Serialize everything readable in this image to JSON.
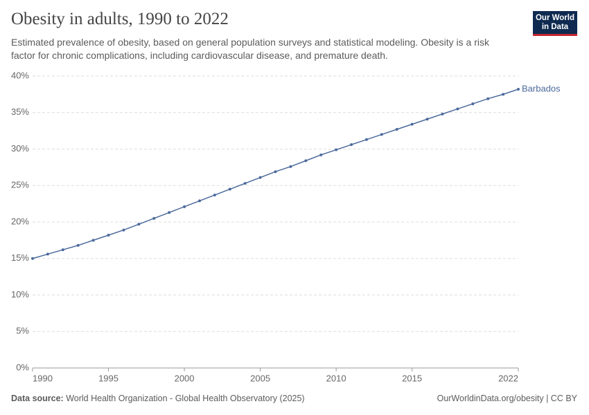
{
  "chart_data": {
    "type": "line",
    "title": "Obesity in adults, 1990 to 2022",
    "subtitle": "Estimated prevalence of obesity, based on general population surveys and statistical modeling. Obesity is a risk factor for chronic complications, including cardiovascular disease, and premature death.",
    "logo": [
      "Our World",
      "in Data"
    ],
    "source_label": "Data source:",
    "source": "World Health Organization - Global Health Observatory (2025)",
    "footer_url": "OurWorldinData.org/obesity | CC BY",
    "x": [
      1990,
      1991,
      1992,
      1993,
      1994,
      1995,
      1996,
      1997,
      1998,
      1999,
      2000,
      2001,
      2002,
      2003,
      2004,
      2005,
      2006,
      2007,
      2008,
      2009,
      2010,
      2011,
      2012,
      2013,
      2014,
      2015,
      2016,
      2017,
      2018,
      2019,
      2020,
      2021,
      2022
    ],
    "series": [
      {
        "name": "Barbados",
        "color": "#4c6a9c",
        "values": [
          15.0,
          15.6,
          16.2,
          16.8,
          17.5,
          18.2,
          18.9,
          19.7,
          20.5,
          21.3,
          22.1,
          22.9,
          23.7,
          24.5,
          25.3,
          26.1,
          26.9,
          27.6,
          28.4,
          29.2,
          29.9,
          30.6,
          31.3,
          32.0,
          32.7,
          33.4,
          34.1,
          34.8,
          35.5,
          36.2,
          36.9,
          37.5,
          38.2
        ]
      }
    ],
    "xlim": [
      1990,
      2022
    ],
    "xticks": [
      1990,
      1995,
      2000,
      2005,
      2010,
      2015,
      2022
    ],
    "ylim": [
      0,
      40
    ],
    "yticks": [
      {
        "value": 0,
        "label": "0%"
      },
      {
        "value": 5,
        "label": "5%"
      },
      {
        "value": 10,
        "label": "10%"
      },
      {
        "value": 15,
        "label": "15%"
      },
      {
        "value": 20,
        "label": "20%"
      },
      {
        "value": 25,
        "label": "25%"
      },
      {
        "value": 30,
        "label": "30%"
      },
      {
        "value": 35,
        "label": "35%"
      },
      {
        "value": 40,
        "label": "40%"
      }
    ],
    "grid": true
  }
}
